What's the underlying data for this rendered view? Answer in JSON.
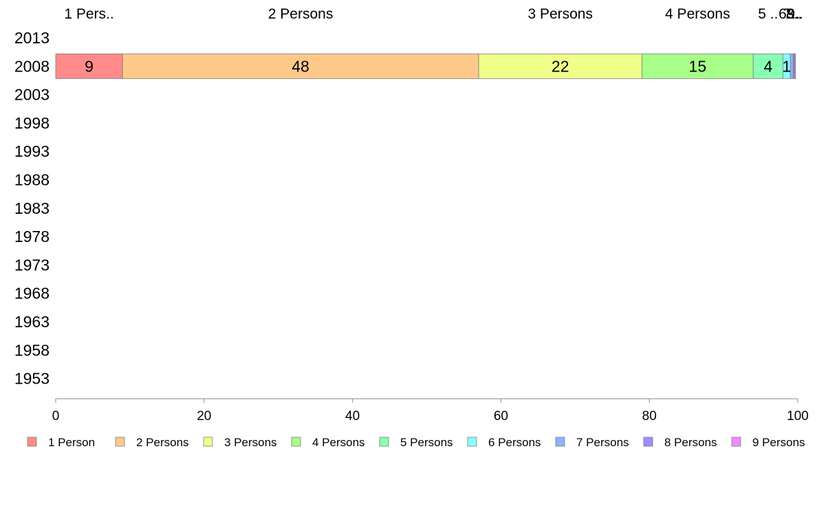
{
  "chart_data": {
    "type": "bar",
    "orientation": "horizontal",
    "stacked": true,
    "categories": [
      "2013",
      "2008",
      "2003",
      "1998",
      "1993",
      "1988",
      "1983",
      "1978",
      "1973",
      "1968",
      "1963",
      "1958",
      "1953"
    ],
    "series": [
      {
        "name": "1 Person",
        "color": "#ff8a8a",
        "values": [
          null,
          9,
          null,
          null,
          null,
          null,
          null,
          null,
          null,
          null,
          null,
          null,
          null
        ]
      },
      {
        "name": "2 Persons",
        "color": "#ffc98a",
        "values": [
          null,
          48,
          null,
          null,
          null,
          null,
          null,
          null,
          null,
          null,
          null,
          null,
          null
        ]
      },
      {
        "name": "3 Persons",
        "color": "#eeff8a",
        "values": [
          null,
          22,
          null,
          null,
          null,
          null,
          null,
          null,
          null,
          null,
          null,
          null,
          null
        ]
      },
      {
        "name": "4 Persons",
        "color": "#a8ff8a",
        "values": [
          null,
          15,
          null,
          null,
          null,
          null,
          null,
          null,
          null,
          null,
          null,
          null,
          null
        ]
      },
      {
        "name": "5 Persons",
        "color": "#8affb4",
        "values": [
          null,
          4,
          null,
          null,
          null,
          null,
          null,
          null,
          null,
          null,
          null,
          null,
          null
        ]
      },
      {
        "name": "6 Persons",
        "color": "#8affff",
        "values": [
          null,
          1,
          null,
          null,
          null,
          null,
          null,
          null,
          null,
          null,
          null,
          null,
          null
        ]
      },
      {
        "name": "7 Persons",
        "color": "#8ab4ff",
        "values": [
          null,
          0.4,
          null,
          null,
          null,
          null,
          null,
          null,
          null,
          null,
          null,
          null,
          null
        ]
      },
      {
        "name": "8 Persons",
        "color": "#a08aff",
        "values": [
          null,
          0.2,
          null,
          null,
          null,
          null,
          null,
          null,
          null,
          null,
          null,
          null,
          null
        ]
      },
      {
        "name": "9 Persons",
        "color": "#f08aff",
        "values": [
          null,
          0.1,
          null,
          null,
          null,
          null,
          null,
          null,
          null,
          null,
          null,
          null,
          null
        ]
      }
    ],
    "top_labels": [
      "1 Pers..",
      "2 Persons",
      "3 Persons",
      "4 Persons",
      "5 ..",
      "6..",
      "7..",
      "8..",
      "9.."
    ],
    "segment_labels": [
      "9",
      "48",
      "22",
      "15",
      "4",
      "1",
      "",
      "",
      ""
    ],
    "xlim": [
      0,
      100
    ],
    "xticks": [
      0,
      20,
      40,
      60,
      80,
      100
    ],
    "grid": false,
    "legend_position": "bottom",
    "title": "",
    "xlabel": "",
    "ylabel": ""
  }
}
